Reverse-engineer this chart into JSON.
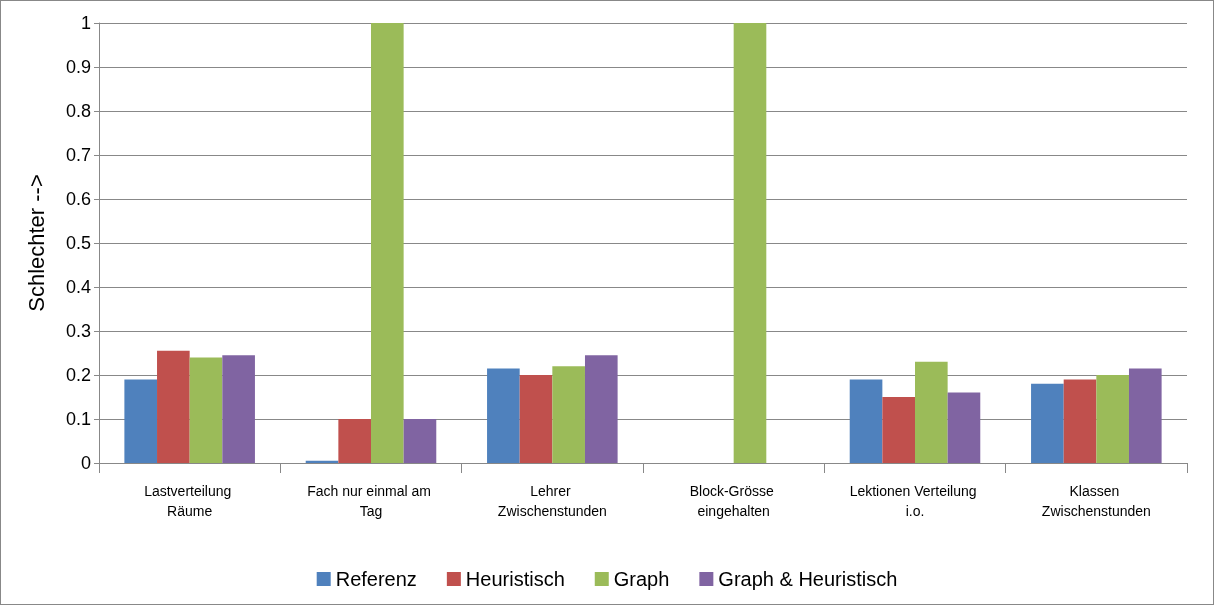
{
  "chart_data": {
    "type": "bar",
    "ylabel": "Schlechter -->",
    "categories": [
      "Lastverteilung Räume",
      "Fach nur einmal am Tag",
      "Lehrer Zwischenstunden",
      "Block-Grösse eingehalten",
      "Lektionen Verteilung i.o.",
      "Klassen Zwischenstunden"
    ],
    "series": [
      {
        "name": "Referenz",
        "color": "#4f81bd",
        "values": [
          0.19,
          0.005,
          0.215,
          0,
          0.19,
          0.18
        ]
      },
      {
        "name": "Heuristisch",
        "color": "#c0504d",
        "values": [
          0.255,
          0.1,
          0.2,
          0,
          0.15,
          0.19
        ]
      },
      {
        "name": "Graph",
        "color": "#9bbb59",
        "values": [
          0.24,
          1,
          0.22,
          1,
          0.23,
          0.2
        ]
      },
      {
        "name": "Graph & Heuristisch",
        "color": "#8064a2",
        "values": [
          0.245,
          0.1,
          0.245,
          0,
          0.16,
          0.215
        ]
      }
    ],
    "ylim": [
      0,
      1
    ],
    "yticks": [
      0,
      0.1,
      0.2,
      0.3,
      0.4,
      0.5,
      0.6,
      0.7,
      0.8,
      0.9,
      1
    ],
    "grid": "y",
    "legend": "bottom"
  }
}
